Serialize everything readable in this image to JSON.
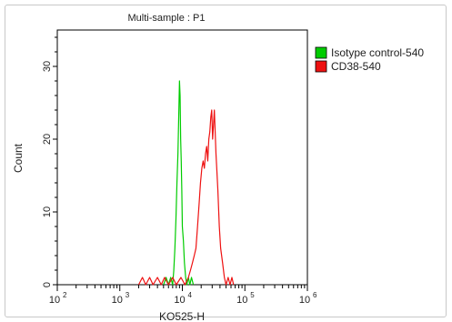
{
  "chart_data": {
    "type": "line",
    "title": "Multi-sample : P1",
    "xlabel": "KO525-H",
    "ylabel": "Count",
    "x_scale": "log",
    "xlim": [
      100,
      1000000
    ],
    "ylim": [
      0,
      35
    ],
    "x_ticks": [
      {
        "value": 100,
        "base": "10",
        "exp": "2"
      },
      {
        "value": 1000,
        "base": "10",
        "exp": "3"
      },
      {
        "value": 10000,
        "base": "10",
        "exp": "4"
      },
      {
        "value": 100000,
        "base": "10",
        "exp": "5"
      },
      {
        "value": 1000000,
        "base": "10",
        "exp": "6"
      }
    ],
    "y_ticks": [
      "0",
      "10",
      "20",
      "30"
    ],
    "y_tick_values": [
      0,
      10,
      20,
      30
    ],
    "legend_position": "top-right outside",
    "grid": false,
    "series": [
      {
        "name": "Isotype control-540",
        "color": "#00cc00",
        "points": [
          [
            5000,
            0
          ],
          [
            5500,
            1
          ],
          [
            6000,
            0
          ],
          [
            6500,
            1
          ],
          [
            7000,
            0
          ],
          [
            7300,
            2
          ],
          [
            7600,
            5
          ],
          [
            7900,
            9
          ],
          [
            8200,
            14
          ],
          [
            8500,
            18
          ],
          [
            8800,
            24
          ],
          [
            9000,
            28
          ],
          [
            9200,
            26
          ],
          [
            9400,
            20
          ],
          [
            9600,
            17
          ],
          [
            9800,
            13
          ],
          [
            10000,
            8
          ],
          [
            10400,
            6
          ],
          [
            10800,
            3
          ],
          [
            11300,
            1
          ],
          [
            11800,
            0
          ],
          [
            12500,
            1
          ],
          [
            13200,
            0
          ],
          [
            14000,
            1
          ],
          [
            15000,
            0
          ]
        ]
      },
      {
        "name": "CD38-540",
        "color": "#ee1111",
        "points": [
          [
            2000,
            0
          ],
          [
            2300,
            1
          ],
          [
            2600,
            0
          ],
          [
            3000,
            1
          ],
          [
            3400,
            0
          ],
          [
            4000,
            1
          ],
          [
            4600,
            0
          ],
          [
            5200,
            1
          ],
          [
            6000,
            0
          ],
          [
            7000,
            1
          ],
          [
            8000,
            0
          ],
          [
            9500,
            1
          ],
          [
            11000,
            0
          ],
          [
            12500,
            1
          ],
          [
            13500,
            2
          ],
          [
            14500,
            3
          ],
          [
            15500,
            4
          ],
          [
            16500,
            5
          ],
          [
            17500,
            8
          ],
          [
            18500,
            11
          ],
          [
            19500,
            14
          ],
          [
            20500,
            16
          ],
          [
            21500,
            17
          ],
          [
            22500,
            16
          ],
          [
            23500,
            18
          ],
          [
            24500,
            19
          ],
          [
            25500,
            17
          ],
          [
            26500,
            20
          ],
          [
            27500,
            21
          ],
          [
            28500,
            23
          ],
          [
            29500,
            24
          ],
          [
            30500,
            20
          ],
          [
            31500,
            22
          ],
          [
            32500,
            24
          ],
          [
            33500,
            21
          ],
          [
            34500,
            18
          ],
          [
            35500,
            16
          ],
          [
            37000,
            13
          ],
          [
            39000,
            8
          ],
          [
            41000,
            5
          ],
          [
            44000,
            3
          ],
          [
            47000,
            1
          ],
          [
            50000,
            0
          ],
          [
            54000,
            1
          ],
          [
            58000,
            0
          ],
          [
            62000,
            1
          ],
          [
            66000,
            0
          ]
        ]
      }
    ]
  }
}
